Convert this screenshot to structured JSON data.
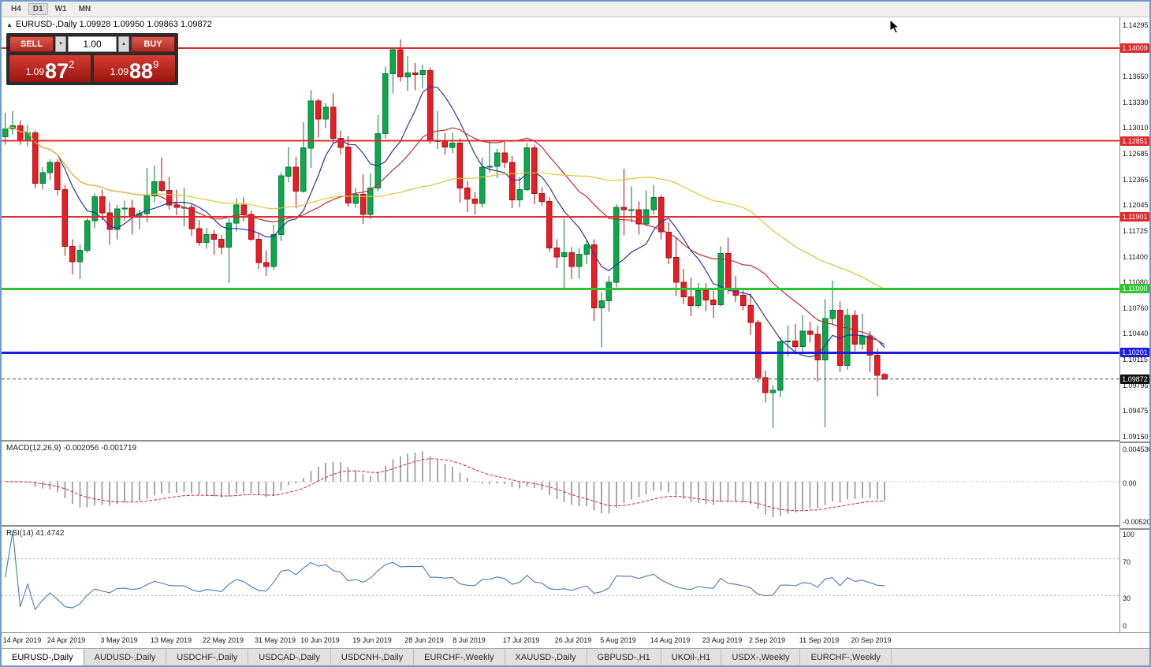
{
  "toolbar": {
    "timeframes": [
      "H4",
      "D1",
      "W1",
      "MN"
    ],
    "active": "D1"
  },
  "chart_header": {
    "collapse_icon": "▲",
    "title": "EURUSD-,Daily 1.09928 1.09950 1.09863 1.09872"
  },
  "trade_panel": {
    "sell_label": "SELL",
    "buy_label": "BUY",
    "volume": "1.00",
    "volume_down_icon": "▼",
    "volume_up_icon": "▲",
    "sell_price": {
      "prefix": "1.09",
      "big": "87",
      "sup": "2"
    },
    "buy_price": {
      "prefix": "1.09",
      "big": "88",
      "sup": "9"
    }
  },
  "price_axis": {
    "min": 1.0915,
    "max": 1.14295,
    "labels": [
      1.14295,
      1.1365,
      1.1333,
      1.1301,
      1.12685,
      1.12365,
      1.12045,
      1.11725,
      1.114,
      1.1108,
      1.1076,
      1.1044,
      1.10115,
      1.09795,
      1.09475,
      1.0915
    ]
  },
  "hlines": [
    {
      "price": 1.14009,
      "color": "#dd2c2c",
      "width": 2
    },
    {
      "price": 1.12851,
      "color": "#dd2c2c",
      "width": 2
    },
    {
      "price": 1.11901,
      "color": "#dd2c2c",
      "width": 2
    },
    {
      "price": 1.11,
      "color": "#2fc52f",
      "width": 3
    },
    {
      "price": 1.10201,
      "color": "#1b1bd8",
      "width": 3
    }
  ],
  "current_price": {
    "price": 1.09872,
    "badge_color": "#111111"
  },
  "macd_pane": {
    "label": "MACD(12,26,9) -0.002056 -0.001719",
    "max": 0.004536,
    "min": -0.0052,
    "axis": [
      {
        "text": "0.004536",
        "value": 0.004536
      },
      {
        "text": "0.00",
        "value": 0
      },
      {
        "text": "-0.00520",
        "value": -0.0052
      }
    ]
  },
  "rsi_pane": {
    "label": "RSI(14) 41.4742",
    "axis": [
      {
        "text": "100",
        "value": 100
      },
      {
        "text": "70",
        "value": 70
      },
      {
        "text": "30",
        "value": 30
      },
      {
        "text": "0",
        "value": 0
      }
    ]
  },
  "date_axis": {
    "labels": [
      {
        "text": "14 Apr 2019",
        "idx": 2
      },
      {
        "text": "24 Apr 2019",
        "idx": 8
      },
      {
        "text": "3 May 2019",
        "idx": 15
      },
      {
        "text": "13 May 2019",
        "idx": 22
      },
      {
        "text": "22 May 2019",
        "idx": 29
      },
      {
        "text": "31 May 2019",
        "idx": 36
      },
      {
        "text": "10 Jun 2019",
        "idx": 42
      },
      {
        "text": "19 Jun 2019",
        "idx": 49
      },
      {
        "text": "28 Jun 2019",
        "idx": 56
      },
      {
        "text": "8 Jul 2019",
        "idx": 62
      },
      {
        "text": "17 Jul 2019",
        "idx": 69
      },
      {
        "text": "26 Jul 2019",
        "idx": 76
      },
      {
        "text": "5 Aug 2019",
        "idx": 82
      },
      {
        "text": "14 Aug 2019",
        "idx": 89
      },
      {
        "text": "23 Aug 2019",
        "idx": 96
      },
      {
        "text": "2 Sep 2019",
        "idx": 102
      },
      {
        "text": "11 Sep 2019",
        "idx": 109
      },
      {
        "text": "20 Sep 2019",
        "idx": 116
      }
    ]
  },
  "tabs": {
    "active_index": 0,
    "items": [
      "EURUSD-,Daily",
      "AUDUSD-,Daily",
      "USDCHF-,Daily",
      "USDCAD-,Daily",
      "USDCNH-,Daily",
      "EURCHF-,Weekly",
      "XAUUSD-,Daily",
      "GBPUSD-,H1",
      "UKOil-,H1",
      "USDX-,Weekly",
      "EURCHF-,Weekly"
    ]
  },
  "chart_data": {
    "type": "candlestick",
    "symbol": "EURUSD-",
    "timeframe": "Daily",
    "open": 1.09928,
    "high": 1.0995,
    "low": 1.09863,
    "close": 1.09872,
    "slots": 150,
    "up_color": "#0ba94c",
    "up_border": "#077a36",
    "down_color": "#ea1c24",
    "down_border": "#a90f14",
    "moving_averages": [
      {
        "period": 8,
        "color": "#28359b"
      },
      {
        "period": 21,
        "color": "#bf2b3a"
      },
      {
        "period": 50,
        "color": "#e3c33a"
      }
    ],
    "macd": {
      "fast": 12,
      "slow": 26,
      "signal": 9,
      "histogram_color": "#a8a8a8",
      "signal_color": "#cc2a3c"
    },
    "rsi": {
      "period": 14,
      "color": "#4a7ab5",
      "levels": [
        70,
        30
      ],
      "level_color": "#b3a6cc"
    },
    "ohlc": [
      [
        1.129,
        1.132,
        1.128,
        1.13
      ],
      [
        1.13,
        1.1322,
        1.1293,
        1.1304
      ],
      [
        1.1304,
        1.131,
        1.128,
        1.1285
      ],
      [
        1.1285,
        1.1305,
        1.1278,
        1.1295
      ],
      [
        1.1295,
        1.1298,
        1.1226,
        1.1232
      ],
      [
        1.1232,
        1.1252,
        1.1224,
        1.1245
      ],
      [
        1.1245,
        1.1262,
        1.1236,
        1.1258
      ],
      [
        1.1258,
        1.1262,
        1.1217,
        1.1224
      ],
      [
        1.1224,
        1.123,
        1.1141,
        1.1153
      ],
      [
        1.1153,
        1.1162,
        1.1118,
        1.1134
      ],
      [
        1.1134,
        1.1155,
        1.1112,
        1.1148
      ],
      [
        1.1148,
        1.1188,
        1.1145,
        1.1185
      ],
      [
        1.1185,
        1.1219,
        1.1176,
        1.1215
      ],
      [
        1.1215,
        1.1224,
        1.1186,
        1.1195
      ],
      [
        1.1195,
        1.1208,
        1.1155,
        1.1174
      ],
      [
        1.1174,
        1.1205,
        1.1162,
        1.12
      ],
      [
        1.12,
        1.121,
        1.1185,
        1.1201
      ],
      [
        1.1201,
        1.1211,
        1.1168,
        1.119
      ],
      [
        1.119,
        1.1199,
        1.1174,
        1.1194
      ],
      [
        1.1194,
        1.1251,
        1.1183,
        1.1216
      ],
      [
        1.1216,
        1.1254,
        1.1208,
        1.1234
      ],
      [
        1.1234,
        1.1264,
        1.1221,
        1.1223
      ],
      [
        1.1223,
        1.124,
        1.1199,
        1.1205
      ],
      [
        1.1205,
        1.1224,
        1.1192,
        1.1202
      ],
      [
        1.1202,
        1.1226,
        1.1178,
        1.1202
      ],
      [
        1.1202,
        1.1206,
        1.1166,
        1.1175
      ],
      [
        1.1175,
        1.1186,
        1.1154,
        1.1158
      ],
      [
        1.1158,
        1.1176,
        1.115,
        1.1168
      ],
      [
        1.1168,
        1.1173,
        1.1142,
        1.1162
      ],
      [
        1.1162,
        1.1168,
        1.1143,
        1.1152
      ],
      [
        1.1152,
        1.1188,
        1.1107,
        1.1182
      ],
      [
        1.1182,
        1.1213,
        1.1172,
        1.1205
      ],
      [
        1.1205,
        1.1214,
        1.1184,
        1.1193
      ],
      [
        1.1193,
        1.1198,
        1.116,
        1.1162
      ],
      [
        1.1162,
        1.117,
        1.1125,
        1.1133
      ],
      [
        1.1133,
        1.1148,
        1.1116,
        1.1128
      ],
      [
        1.1128,
        1.118,
        1.1124,
        1.1168
      ],
      [
        1.1168,
        1.1245,
        1.116,
        1.1241
      ],
      [
        1.1241,
        1.1277,
        1.1233,
        1.1252
      ],
      [
        1.1252,
        1.1265,
        1.1201,
        1.1222
      ],
      [
        1.1222,
        1.1309,
        1.122,
        1.1276
      ],
      [
        1.1276,
        1.1348,
        1.1251,
        1.1335
      ],
      [
        1.1335,
        1.1338,
        1.1289,
        1.1312
      ],
      [
        1.1312,
        1.1332,
        1.1301,
        1.1327
      ],
      [
        1.1327,
        1.1344,
        1.1282,
        1.1288
      ],
      [
        1.1288,
        1.1298,
        1.1268,
        1.1277
      ],
      [
        1.1277,
        1.1291,
        1.1203,
        1.1207
      ],
      [
        1.1207,
        1.1226,
        1.1202,
        1.1218
      ],
      [
        1.1218,
        1.1243,
        1.1181,
        1.1193
      ],
      [
        1.1193,
        1.1244,
        1.1187,
        1.1226
      ],
      [
        1.1226,
        1.1317,
        1.1222,
        1.1294
      ],
      [
        1.1294,
        1.1378,
        1.1288,
        1.1369
      ],
      [
        1.1369,
        1.1402,
        1.1344,
        1.1399
      ],
      [
        1.1399,
        1.1412,
        1.1359,
        1.1365
      ],
      [
        1.1365,
        1.1391,
        1.1347,
        1.137
      ],
      [
        1.137,
        1.1382,
        1.1348,
        1.1368
      ],
      [
        1.1368,
        1.138,
        1.1351,
        1.1373
      ],
      [
        1.1373,
        1.1377,
        1.1281,
        1.1285
      ],
      [
        1.1285,
        1.1322,
        1.1275,
        1.1285
      ],
      [
        1.1285,
        1.1295,
        1.1268,
        1.1277
      ],
      [
        1.1277,
        1.1295,
        1.127,
        1.1282
      ],
      [
        1.1282,
        1.1288,
        1.1207,
        1.1226
      ],
      [
        1.1226,
        1.1235,
        1.1196,
        1.1212
      ],
      [
        1.1212,
        1.1221,
        1.1193,
        1.1207
      ],
      [
        1.1207,
        1.1264,
        1.1202,
        1.1252
      ],
      [
        1.1252,
        1.1286,
        1.1245,
        1.1253
      ],
      [
        1.1253,
        1.1275,
        1.1239,
        1.127
      ],
      [
        1.127,
        1.1284,
        1.1251,
        1.1258
      ],
      [
        1.1258,
        1.1266,
        1.1201,
        1.1211
      ],
      [
        1.1211,
        1.124,
        1.1202,
        1.1224
      ],
      [
        1.1224,
        1.1282,
        1.1222,
        1.1276
      ],
      [
        1.1276,
        1.128,
        1.1206,
        1.1219
      ],
      [
        1.1219,
        1.1227,
        1.1204,
        1.1209
      ],
      [
        1.1209,
        1.1214,
        1.1146,
        1.1151
      ],
      [
        1.1151,
        1.1162,
        1.1126,
        1.114
      ],
      [
        1.114,
        1.1188,
        1.1101,
        1.1145
      ],
      [
        1.1145,
        1.1152,
        1.1112,
        1.1128
      ],
      [
        1.1128,
        1.1151,
        1.1113,
        1.1143
      ],
      [
        1.1143,
        1.1162,
        1.1131,
        1.1155
      ],
      [
        1.1155,
        1.1162,
        1.106,
        1.1076
      ],
      [
        1.1076,
        1.1096,
        1.1027,
        1.1085
      ],
      [
        1.1085,
        1.1116,
        1.1071,
        1.1108
      ],
      [
        1.1108,
        1.1206,
        1.1102,
        1.1202
      ],
      [
        1.1202,
        1.125,
        1.1167,
        1.1199
      ],
      [
        1.1199,
        1.1228,
        1.1183,
        1.1199
      ],
      [
        1.1199,
        1.1209,
        1.1168,
        1.1181
      ],
      [
        1.1181,
        1.1223,
        1.1178,
        1.1199
      ],
      [
        1.1199,
        1.123,
        1.1193,
        1.1214
      ],
      [
        1.1214,
        1.1217,
        1.1162,
        1.1171
      ],
      [
        1.1171,
        1.1183,
        1.1131,
        1.1139
      ],
      [
        1.1139,
        1.1164,
        1.1091,
        1.1108
      ],
      [
        1.1108,
        1.1125,
        1.1081,
        1.109
      ],
      [
        1.109,
        1.1114,
        1.1066,
        1.1079
      ],
      [
        1.1079,
        1.1107,
        1.1075,
        1.1098
      ],
      [
        1.1098,
        1.1107,
        1.1072,
        1.1086
      ],
      [
        1.1086,
        1.1098,
        1.1064,
        1.108
      ],
      [
        1.108,
        1.1153,
        1.1078,
        1.1144
      ],
      [
        1.1144,
        1.1164,
        1.1094,
        1.1101
      ],
      [
        1.1101,
        1.1116,
        1.1083,
        1.1092
      ],
      [
        1.1092,
        1.1098,
        1.1073,
        1.1079
      ],
      [
        1.1079,
        1.1094,
        1.1042,
        1.1058
      ],
      [
        1.1058,
        1.1061,
        1.0983,
        1.0989
      ],
      [
        1.0989,
        1.0998,
        1.0958,
        1.097
      ],
      [
        1.097,
        1.0979,
        1.0926,
        1.0973
      ],
      [
        1.0973,
        1.1039,
        1.0965,
        1.1034
      ],
      [
        1.1034,
        1.1054,
        1.1015,
        1.1035
      ],
      [
        1.1035,
        1.1056,
        1.1022,
        1.1028
      ],
      [
        1.1028,
        1.1067,
        1.1018,
        1.1047
      ],
      [
        1.1047,
        1.1059,
        1.1033,
        1.1043
      ],
      [
        1.1043,
        1.1054,
        1.0984,
        1.1011
      ],
      [
        1.1011,
        1.1087,
        1.0927,
        1.1063
      ],
      [
        1.1063,
        1.111,
        1.1055,
        1.1073
      ],
      [
        1.1073,
        1.1084,
        1.0996,
        1.1004
      ],
      [
        1.1004,
        1.1075,
        1.0999,
        1.1067
      ],
      [
        1.1067,
        1.1073,
        1.1022,
        1.1031
      ],
      [
        1.1031,
        1.1069,
        1.1024,
        1.1041
      ],
      [
        1.1041,
        1.1047,
        1.0996,
        1.1017
      ],
      [
        1.1017,
        1.1025,
        1.0966,
        1.0992
      ],
      [
        1.09928,
        1.0995,
        1.09863,
        1.09872
      ]
    ]
  }
}
